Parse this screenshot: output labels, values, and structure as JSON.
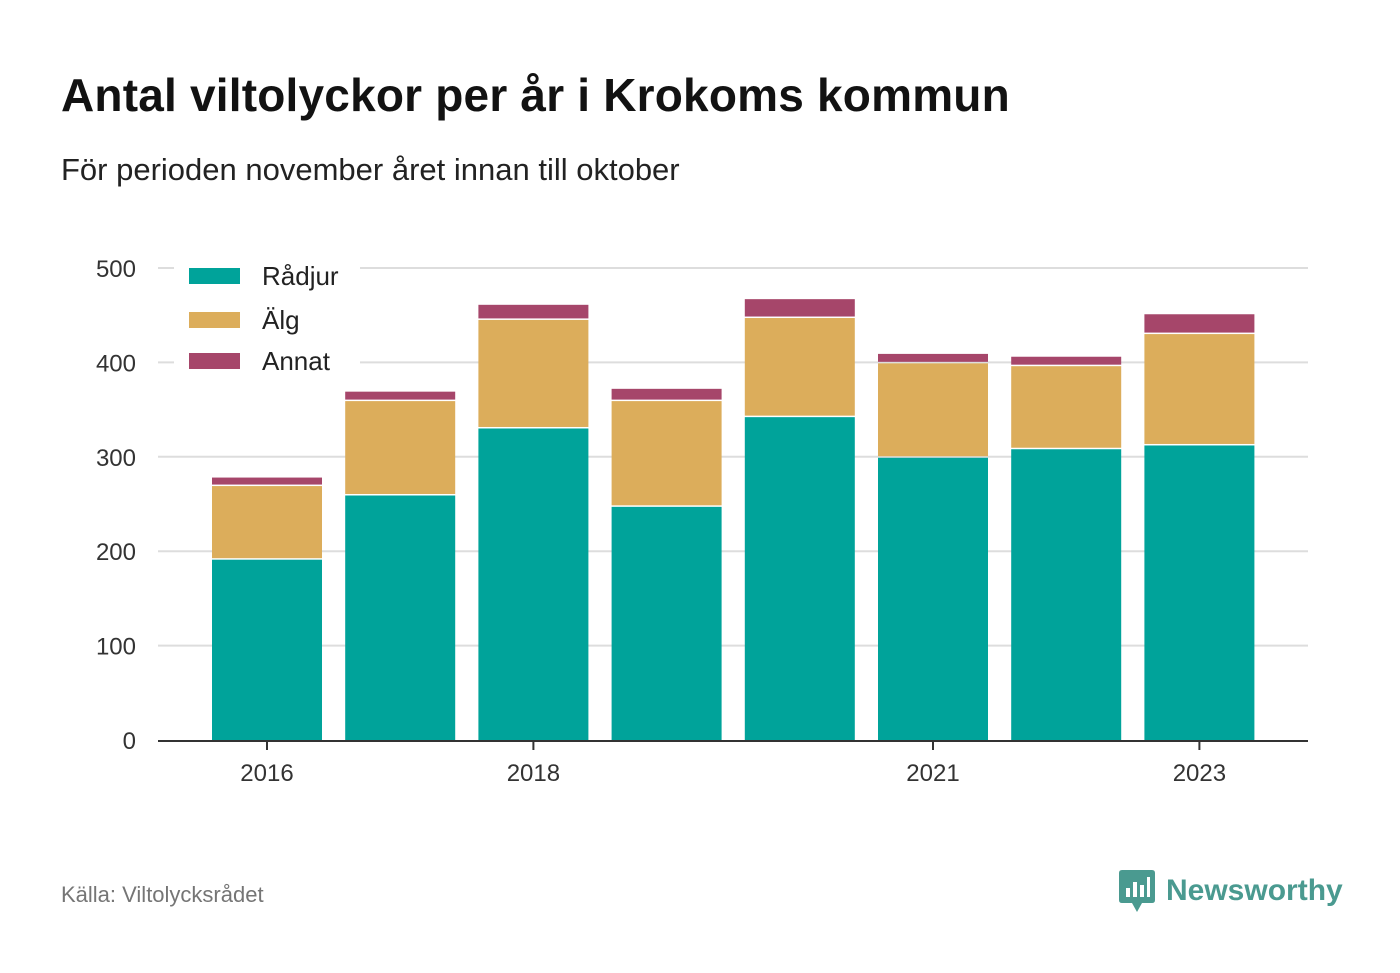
{
  "header": {
    "title": "Antal viltolyckor per år i Krokoms kommun",
    "subtitle": "För perioden november året innan till oktober"
  },
  "footer": {
    "source": "Källa: Viltolycksrådet",
    "brand": "Newsworthy",
    "brand_icon": "speech-bubble-bar-chart-icon"
  },
  "colors": {
    "radjur": "#00a39a",
    "alg": "#dcad5b",
    "annat": "#a6466a",
    "grid": "#dddddd",
    "axis": "#333333",
    "brand": "#4a9a90"
  },
  "chart_data": {
    "type": "bar",
    "stacked": true,
    "categories": [
      "2016",
      "2017",
      "2018",
      "2019",
      "2020",
      "2021",
      "2022",
      "2023"
    ],
    "x_tick_labels": [
      "2016",
      "2018",
      "2021",
      "2023"
    ],
    "series": [
      {
        "name": "Rådjur",
        "color": "#00a39a",
        "values": [
          191,
          259,
          330,
          247,
          342,
          299,
          308,
          312
        ]
      },
      {
        "name": "Älg",
        "color": "#dcad5b",
        "values": [
          78,
          100,
          115,
          112,
          105,
          100,
          88,
          118
        ]
      },
      {
        "name": "Annat",
        "color": "#a6466a",
        "values": [
          9,
          10,
          16,
          13,
          20,
          10,
          10,
          21
        ]
      }
    ],
    "yticks": [
      0,
      100,
      200,
      300,
      400,
      500
    ],
    "ylim": [
      0,
      500
    ],
    "grid": true,
    "legend": "top-left"
  }
}
